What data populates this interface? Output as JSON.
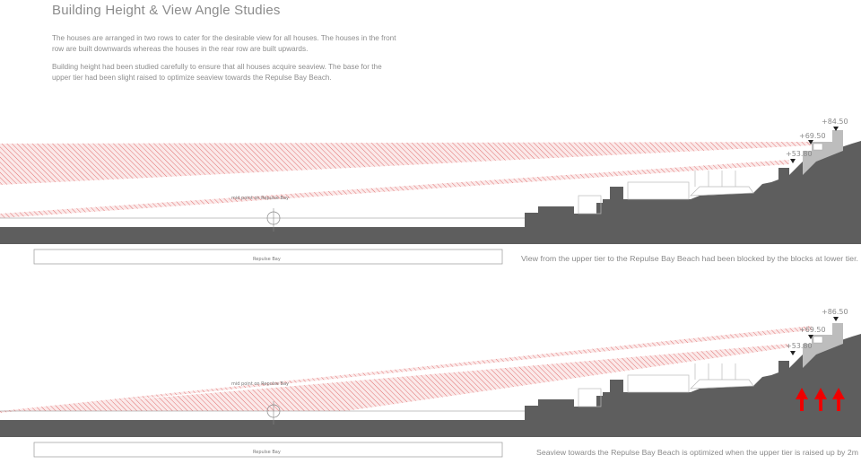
{
  "title": "Building Height & View Angle Studies",
  "paragraphs": [
    "The houses are arranged in two rows to cater for the desirable view for all houses.  The houses in the front row are built downwards whereas the houses in the rear row are built upwards.",
    "Building height had been studied carefully to ensure that all houses acquire seaview. The base for the upper tier had been slight raised to optimize seaview towards the Repulse Bay Beach."
  ],
  "sections": [
    {
      "elevations": [
        "+84.50",
        "+69.50",
        "+53.80"
      ],
      "midpoint_label": "mid point on Repulse Bay",
      "bay_label": "Repulse Bay",
      "caption": "View from the upper tier to the Repulse Bay Beach had been blocked by the blocks at lower tier."
    },
    {
      "elevations": [
        "+86.50",
        "+69.50",
        "+53.80"
      ],
      "midpoint_label": "mid point on Repulse Bay",
      "bay_label": "Repulse Bay",
      "caption": "Seaview towards the Repulse Bay Beach is optimized when the upper tier is raised up by 2m"
    }
  ],
  "colors": {
    "hatch": "#e07070",
    "ground": "#5e5e5e",
    "building": "#bdbdbd",
    "arrow": "#ee0000"
  },
  "icons": [
    "up-arrow-icon",
    "elevation-marker-icon",
    "midpoint-target-icon"
  ]
}
